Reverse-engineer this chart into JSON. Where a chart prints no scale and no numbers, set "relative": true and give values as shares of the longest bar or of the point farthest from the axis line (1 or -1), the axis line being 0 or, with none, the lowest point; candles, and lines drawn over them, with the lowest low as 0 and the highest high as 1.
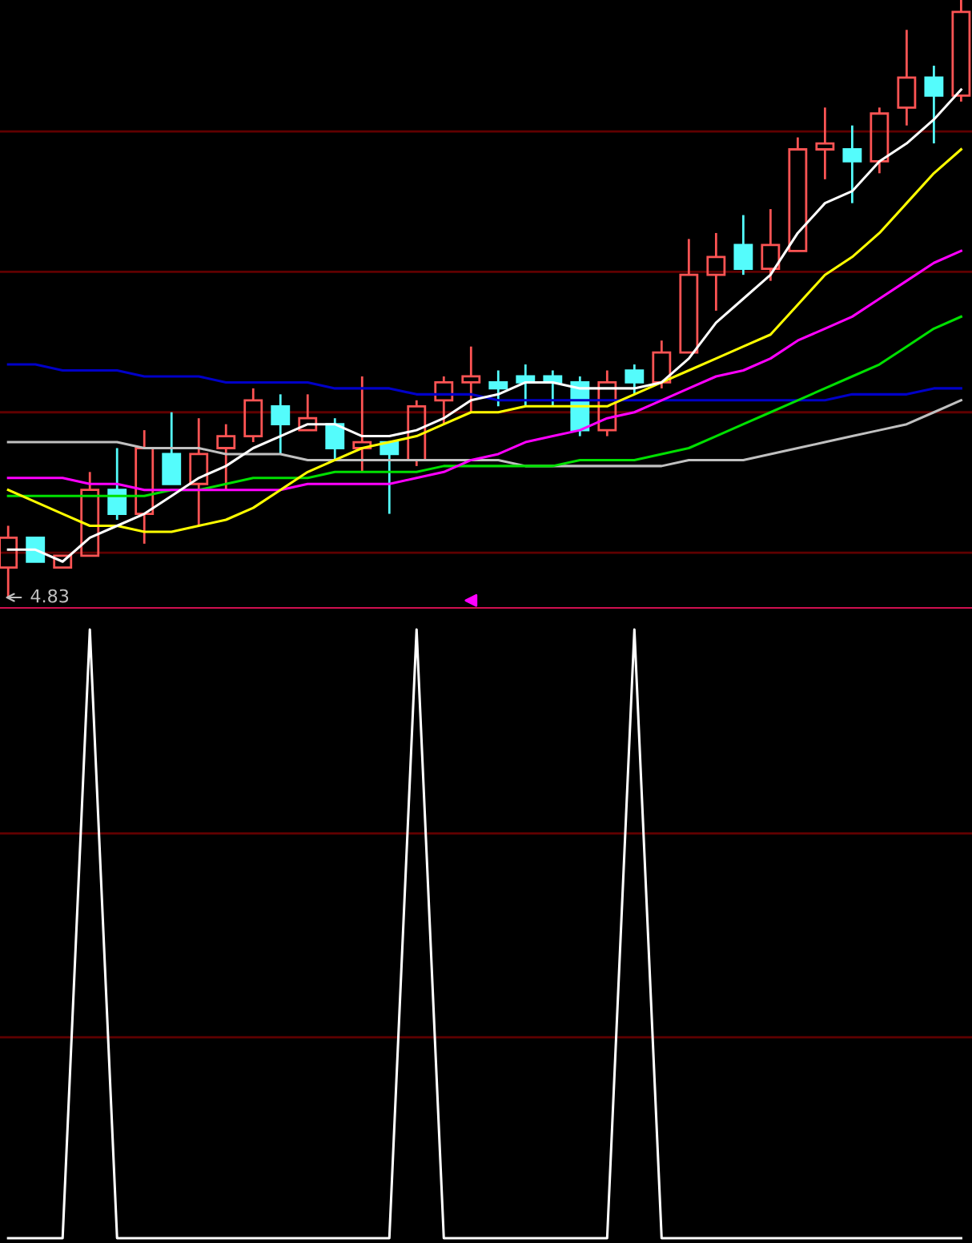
{
  "chart_data": [
    {
      "type": "candlestick",
      "relative": true,
      "ref_lines": [
        {
          "axis": "y",
          "value": 0.075,
          "color": "#600000"
        },
        {
          "axis": "y",
          "value": 0.31,
          "color": "#600000"
        },
        {
          "axis": "y",
          "value": 0.545,
          "color": "#600000"
        },
        {
          "axis": "y",
          "value": 0.78,
          "color": "#600000"
        }
      ],
      "categories": [
        null,
        null,
        null,
        null,
        null,
        null,
        null,
        null,
        null,
        null,
        null,
        null,
        null,
        null,
        null,
        null,
        null,
        null,
        null,
        null,
        null,
        null,
        null,
        null,
        null,
        null,
        null,
        null,
        null,
        null,
        null,
        null,
        null,
        null,
        null,
        null
      ],
      "ohlc": [
        [
          0.05,
          0.12,
          0,
          0.1
        ],
        [
          0.1,
          0.1,
          0.06,
          0.06
        ],
        [
          0.05,
          0.07,
          0.05,
          0.07
        ],
        [
          0.07,
          0.21,
          0.07,
          0.18
        ],
        [
          0.18,
          0.25,
          0.13,
          0.14
        ],
        [
          0.14,
          0.28,
          0.09,
          0.25
        ],
        [
          0.24,
          0.31,
          0.19,
          0.19
        ],
        [
          0.19,
          0.3,
          0.12,
          0.24
        ],
        [
          0.25,
          0.29,
          0.18,
          0.27
        ],
        [
          0.27,
          0.35,
          0.26,
          0.33
        ],
        [
          0.32,
          0.34,
          0.24,
          0.29
        ],
        [
          0.28,
          0.34,
          0.28,
          0.3
        ],
        [
          0.29,
          0.3,
          0.23,
          0.25
        ],
        [
          0.25,
          0.37,
          0.21,
          0.26
        ],
        [
          0.26,
          0.26,
          0.14,
          0.24
        ],
        [
          0.23,
          0.33,
          0.22,
          0.32
        ],
        [
          0.33,
          0.37,
          0.29,
          0.36
        ],
        [
          0.36,
          0.42,
          0.31,
          0.37
        ],
        [
          0.36,
          0.38,
          0.32,
          0.35
        ],
        [
          0.37,
          0.39,
          0.32,
          0.36
        ],
        [
          0.37,
          0.38,
          0.32,
          0.36
        ],
        [
          0.36,
          0.37,
          0.27,
          0.28
        ],
        [
          0.28,
          0.38,
          0.27,
          0.36
        ],
        [
          0.38,
          0.39,
          0.34,
          0.36
        ],
        [
          0.36,
          0.43,
          0.35,
          0.41
        ],
        [
          0.41,
          0.6,
          0.41,
          0.54
        ],
        [
          0.54,
          0.61,
          0.48,
          0.57
        ],
        [
          0.59,
          0.64,
          0.54,
          0.55
        ],
        [
          0.55,
          0.65,
          0.53,
          0.59
        ],
        [
          0.58,
          0.77,
          0.58,
          0.75
        ],
        [
          0.75,
          0.82,
          0.7,
          0.76
        ],
        [
          0.75,
          0.79,
          0.66,
          0.73
        ],
        [
          0.73,
          0.82,
          0.71,
          0.81
        ],
        [
          0.82,
          0.95,
          0.79,
          0.87
        ],
        [
          0.87,
          0.89,
          0.76,
          0.84
        ],
        [
          0.84,
          1,
          0.83,
          0.98
        ]
      ],
      "colors": [
        "#ff5454",
        "#54fcfc",
        "#ff5454",
        "#ff5454",
        "#54fcfc",
        "#ff5454",
        "#54fcfc",
        "#ff5454",
        "#ff5454",
        "#ff5454",
        "#54fcfc",
        "#ff5454",
        "#54fcfc",
        "#ff5454",
        "#54fcfc",
        "#ff5454",
        "#ff5454",
        "#ff5454",
        "#54fcfc",
        "#54fcfc",
        "#54fcfc",
        "#54fcfc",
        "#ff5454",
        "#54fcfc",
        "#ff5454",
        "#ff5454",
        "#ff5454",
        "#54fcfc",
        "#ff5454",
        "#ff5454",
        "#ff5454",
        "#54fcfc",
        "#ff5454",
        "#ff5454",
        "#54fcfc",
        "#ff5454"
      ],
      "series": [
        {
          "type": "line",
          "color": "#0000c8",
          "values": [
            0.39,
            0.39,
            0.38,
            0.38,
            0.38,
            0.37,
            0.37,
            0.37,
            0.36,
            0.36,
            0.36,
            0.36,
            0.35,
            0.35,
            0.35,
            0.34,
            0.34,
            0.34,
            0.33,
            0.33,
            0.33,
            0.33,
            0.33,
            0.33,
            0.33,
            0.33,
            0.33,
            0.33,
            0.33,
            0.33,
            0.33,
            0.34,
            0.34,
            0.34,
            0.35,
            0.35
          ]
        },
        {
          "type": "line",
          "color": "#c0c0c0",
          "values": [
            0.26,
            0.26,
            0.26,
            0.26,
            0.26,
            0.25,
            0.25,
            0.25,
            0.24,
            0.24,
            0.24,
            0.23,
            0.23,
            0.23,
            0.23,
            0.23,
            0.23,
            0.23,
            0.23,
            0.22,
            0.22,
            0.22,
            0.22,
            0.22,
            0.22,
            0.23,
            0.23,
            0.23,
            0.24,
            0.25,
            0.26,
            0.27,
            0.28,
            0.29,
            0.31,
            0.33
          ]
        },
        {
          "type": "line",
          "color": "#00e000",
          "values": [
            0.17,
            0.17,
            0.17,
            0.17,
            0.17,
            0.17,
            0.18,
            0.18,
            0.19,
            0.2,
            0.2,
            0.2,
            0.21,
            0.21,
            0.21,
            0.21,
            0.22,
            0.22,
            0.22,
            0.22,
            0.22,
            0.23,
            0.23,
            0.23,
            0.24,
            0.25,
            0.27,
            0.29,
            0.31,
            0.33,
            0.35,
            0.37,
            0.39,
            0.42,
            0.45,
            0.47
          ]
        },
        {
          "type": "line",
          "color": "#ff00ff",
          "values": [
            0.2,
            0.2,
            0.2,
            0.19,
            0.19,
            0.18,
            0.18,
            0.18,
            0.18,
            0.18,
            0.18,
            0.19,
            0.19,
            0.19,
            0.19,
            0.2,
            0.21,
            0.23,
            0.24,
            0.26,
            0.27,
            0.28,
            0.3,
            0.31,
            0.33,
            0.35,
            0.37,
            0.38,
            0.4,
            0.43,
            0.45,
            0.47,
            0.5,
            0.53,
            0.56,
            0.58
          ]
        },
        {
          "type": "line",
          "color": "#ffff00",
          "values": [
            0.18,
            0.16,
            0.14,
            0.12,
            0.12,
            0.11,
            0.11,
            0.12,
            0.13,
            0.15,
            0.18,
            0.21,
            0.23,
            0.25,
            0.26,
            0.27,
            0.29,
            0.31,
            0.31,
            0.32,
            0.32,
            0.32,
            0.32,
            0.34,
            0.36,
            0.38,
            0.4,
            0.42,
            0.44,
            0.49,
            0.54,
            0.57,
            0.61,
            0.66,
            0.71,
            0.75
          ]
        },
        {
          "type": "line",
          "color": "#ffffff",
          "values": [
            0.08,
            0.08,
            0.06,
            0.1,
            0.12,
            0.14,
            0.17,
            0.2,
            0.22,
            0.25,
            0.27,
            0.29,
            0.29,
            0.27,
            0.27,
            0.28,
            0.3,
            0.33,
            0.34,
            0.36,
            0.36,
            0.35,
            0.35,
            0.35,
            0.36,
            0.4,
            0.46,
            0.5,
            0.54,
            0.61,
            0.66,
            0.68,
            0.73,
            0.76,
            0.8,
            0.85
          ]
        }
      ],
      "annotations": [
        "4.83"
      ]
    },
    {
      "type": "line",
      "relative": true,
      "ref_lines": [
        {
          "axis": "y",
          "value": 0.33,
          "color": "#600000"
        },
        {
          "axis": "y",
          "value": 0.665,
          "color": "#600000"
        }
      ],
      "categories": [
        null,
        null,
        null,
        null,
        null,
        null,
        null,
        null,
        null,
        null,
        null,
        null,
        null,
        null,
        null,
        null,
        null,
        null,
        null,
        null,
        null,
        null,
        null,
        null,
        null,
        null,
        null,
        null,
        null,
        null,
        null,
        null,
        null,
        null,
        null,
        null
      ],
      "series": [
        {
          "color": "#ffffff",
          "values": [
            0,
            0,
            0,
            1,
            0,
            0,
            0,
            0,
            0,
            0,
            0,
            0,
            0,
            0,
            0,
            1,
            0,
            0,
            0,
            0,
            0,
            0,
            0,
            1,
            0,
            0,
            0,
            0,
            0,
            0,
            0,
            0,
            0,
            0,
            0,
            0
          ]
        }
      ]
    }
  ]
}
